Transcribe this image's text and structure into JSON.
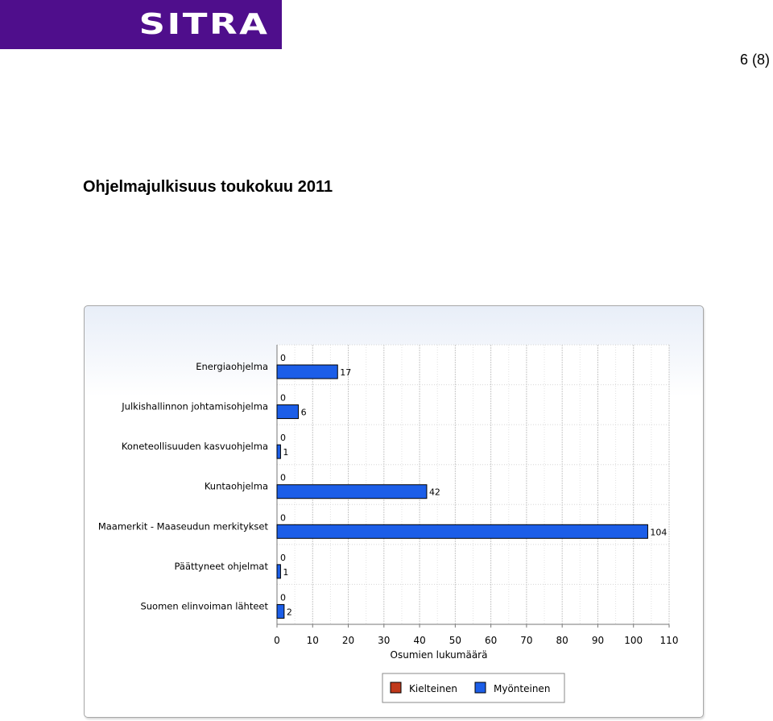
{
  "logo": {
    "text": "SITRA"
  },
  "page": {
    "number": "6 (8)"
  },
  "document": {
    "title": "Ohjelmajulkisuus toukokuu 2011"
  },
  "chart_data": {
    "type": "bar",
    "orientation": "horizontal",
    "categories": [
      "Energiaohjelma",
      "Julkishallinnon johtamisohjelma",
      "Koneteollisuuden kasvuohjelma",
      "Kuntaohjelma",
      "Maamerkit - Maaseudun merkitykset",
      "Päättyneet ohjelmat",
      "Suomen elinvoiman lähteet"
    ],
    "series": [
      {
        "name": "Kielteinen",
        "color": "#c0391b",
        "values": [
          0,
          0,
          0,
          0,
          0,
          0,
          0
        ]
      },
      {
        "name": "Myönteinen",
        "color": "#1c5ee8",
        "values": [
          17,
          6,
          1,
          42,
          104,
          1,
          2
        ]
      }
    ],
    "xlabel": "Osumien lukumäärä",
    "xlim": [
      0,
      110
    ],
    "xticks": [
      0,
      10,
      20,
      30,
      40,
      50,
      60,
      70,
      80,
      90,
      100,
      110
    ],
    "grid": true,
    "legend_position": "bottom"
  }
}
